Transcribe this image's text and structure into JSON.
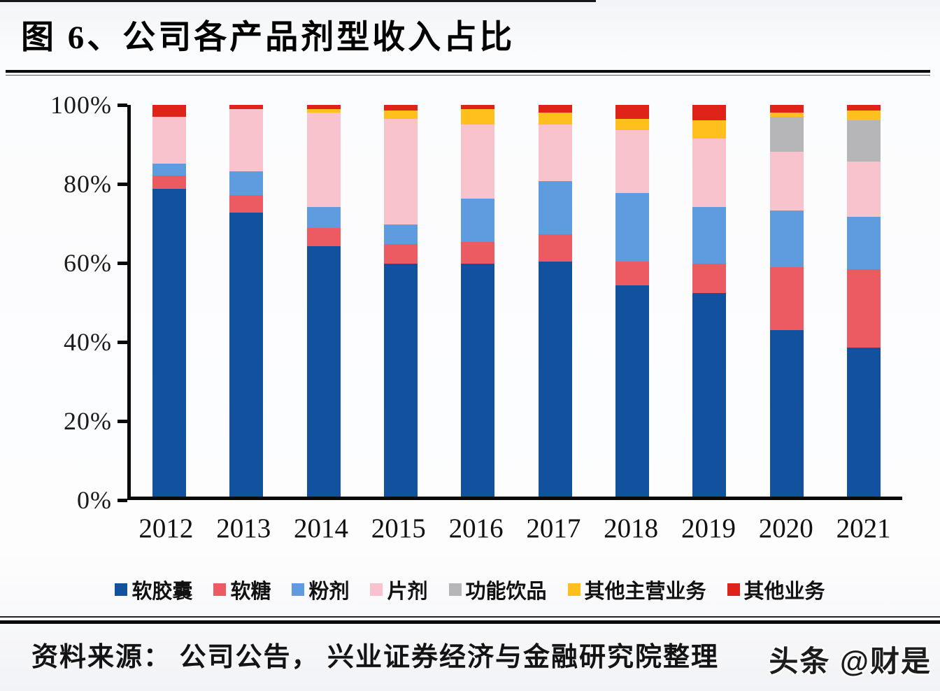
{
  "title": "图 6、公司各产品剂型收入占比",
  "source_text": "资料来源： 公司公告， 兴业证券经济与金融研究院整理",
  "watermark": "头条 @财是",
  "colors": {
    "axis": "#0a0a0a",
    "soft_capsule": "#12519E",
    "gummy": "#EC5B62",
    "powder": "#5F9CDF",
    "tablet": "#F9C3CE",
    "functional_drink": "#B6B6B9",
    "other_main": "#FFC01E",
    "other_biz": "#E02318"
  },
  "chart_data": {
    "type": "bar",
    "stacked": true,
    "grid": false,
    "legend_position": "bottom",
    "title": "图 6、公司各产品剂型收入占比",
    "xlabel": "",
    "ylabel": "",
    "ylim": [
      0,
      100
    ],
    "y_ticks": [
      "0%",
      "20%",
      "40%",
      "60%",
      "80%",
      "100%"
    ],
    "categories": [
      "2012",
      "2013",
      "2014",
      "2015",
      "2016",
      "2017",
      "2018",
      "2019",
      "2020",
      "2021"
    ],
    "series": [
      {
        "name": "软胶囊",
        "color": "#12519E",
        "values": [
          78.5,
          72.5,
          64.0,
          59.5,
          59.5,
          60.0,
          54.0,
          52.0,
          42.5,
          38.0
        ]
      },
      {
        "name": "软糖",
        "color": "#EC5B62",
        "values": [
          3.5,
          4.5,
          4.5,
          5.0,
          5.5,
          7.0,
          6.0,
          7.5,
          16.0,
          20.0
        ]
      },
      {
        "name": "粉剂",
        "color": "#5F9CDF",
        "values": [
          3.0,
          6.0,
          5.5,
          5.0,
          11.0,
          13.5,
          17.5,
          14.5,
          14.5,
          13.5
        ]
      },
      {
        "name": "片剂",
        "color": "#F9C3CE",
        "values": [
          12.0,
          16.0,
          24.0,
          27.0,
          19.0,
          14.5,
          16.0,
          17.5,
          15.0,
          14.0
        ]
      },
      {
        "name": "功能饮品",
        "color": "#B6B6B9",
        "values": [
          0,
          0,
          0,
          0,
          0,
          0,
          0,
          0,
          9.0,
          10.5
        ]
      },
      {
        "name": "其他主营业务",
        "color": "#FFC01E",
        "values": [
          0,
          0,
          1.0,
          2.0,
          4.0,
          3.0,
          3.0,
          4.5,
          1.0,
          2.5
        ]
      },
      {
        "name": "其他业务",
        "color": "#E02318",
        "values": [
          3.0,
          1.0,
          1.0,
          1.5,
          1.0,
          2.0,
          3.5,
          4.0,
          2.0,
          1.5
        ]
      }
    ]
  }
}
